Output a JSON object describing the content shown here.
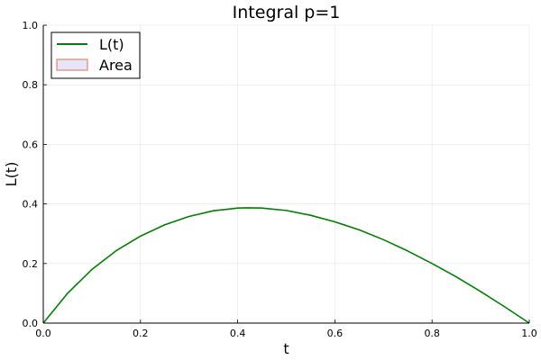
{
  "chart_data": {
    "type": "line",
    "title": "Integral p=1",
    "xlabel": "t",
    "ylabel": "L(t)",
    "xlim": [
      0,
      1
    ],
    "ylim": [
      0,
      1
    ],
    "xticks": [
      0,
      0.2,
      0.4,
      0.6,
      0.8,
      1
    ],
    "yticks": [
      0,
      0.2,
      0.4,
      0.6,
      0.8,
      1
    ],
    "xtick_labels": [
      "0.0",
      "0.2",
      "0.4",
      "0.6",
      "0.8",
      "1.0"
    ],
    "ytick_labels": [
      "0.0",
      "0.2",
      "0.4",
      "0.6",
      "0.8",
      "1.0"
    ],
    "grid": true,
    "legend_position": "top-left",
    "series": [
      {
        "name": "L(t)",
        "kind": "line",
        "color": "#008000",
        "x": [
          0,
          0.05,
          0.1,
          0.15,
          0.2,
          0.25,
          0.3,
          0.35,
          0.4,
          0.42,
          0.45,
          0.5,
          0.55,
          0.6,
          0.65,
          0.7,
          0.75,
          0.8,
          0.85,
          0.9,
          0.95,
          1
        ],
        "y": [
          0,
          0.1,
          0.18,
          0.243,
          0.292,
          0.33,
          0.358,
          0.377,
          0.386,
          0.387,
          0.386,
          0.378,
          0.362,
          0.34,
          0.313,
          0.28,
          0.242,
          0.2,
          0.155,
          0.106,
          0.054,
          0
        ]
      },
      {
        "name": "Area",
        "kind": "area",
        "color": "#e6e6fa",
        "edge_color": "#e26f46",
        "x": [],
        "y": []
      }
    ]
  }
}
